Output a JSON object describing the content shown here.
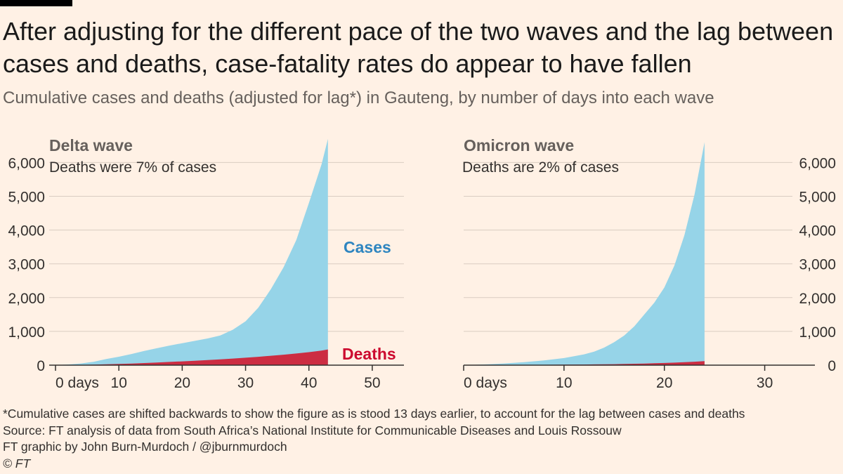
{
  "header": {
    "title": "After adjusting for the different pace of the two waves and the lag between cases and deaths, case-fatality rates do appear to have fallen",
    "subtitle": "Cumulative cases and deaths (adjusted for lag*) in Gauteng, by number of days into each wave"
  },
  "footer": {
    "note": "*Cumulative cases are shifted backwards to show the figure as is stood 13 days earlier, to account for the lag between cases and deaths",
    "source": "Source: FT analysis of data from South Africa’s National Institute for Communicable Diseases and Louis Rossouw",
    "credit": "FT graphic by John Burn-Murdoch / @jburnmurdoch",
    "copyright": "© FT"
  },
  "colors": {
    "background": "#FFF1E5",
    "cases": "#96D4E8",
    "deaths": "#CC2D42",
    "cases_label": "#2E85C0",
    "deaths_label": "#CC0A2F",
    "gridline": "#D9CCC1"
  },
  "chart_data": [
    {
      "type": "area",
      "title": "Delta wave",
      "annotation": "Deaths were 7% of cases",
      "xlim": [
        -1,
        55
      ],
      "ylim": [
        0,
        6800
      ],
      "x_ticks": [
        0,
        10,
        20,
        30,
        40,
        50
      ],
      "x_tick_labels": [
        "0 days",
        "10",
        "20",
        "30",
        "40",
        "50"
      ],
      "y_ticks": [
        0,
        1000,
        2000,
        3000,
        4000,
        5000,
        6000
      ],
      "y_tick_labels": [
        "0",
        "1,000",
        "2,000",
        "3,000",
        "4,000",
        "5,000",
        "6,000"
      ],
      "y_axis_side": "left",
      "series_labels": {
        "cases": "Cases",
        "deaths": "Deaths"
      },
      "x": [
        0,
        2,
        4,
        6,
        8,
        10,
        12,
        14,
        16,
        18,
        20,
        22,
        24,
        26,
        28,
        30,
        32,
        34,
        36,
        38,
        40,
        42,
        43
      ],
      "series": [
        {
          "name": "Cases",
          "values": [
            0,
            20,
            50,
            100,
            180,
            250,
            330,
            420,
            500,
            580,
            650,
            720,
            790,
            880,
            1050,
            1300,
            1700,
            2250,
            2900,
            3700,
            4800,
            5950,
            6700
          ]
        },
        {
          "name": "Deaths",
          "values": [
            0,
            3,
            8,
            15,
            25,
            35,
            48,
            62,
            78,
            95,
            112,
            130,
            150,
            172,
            195,
            220,
            248,
            278,
            310,
            345,
            385,
            430,
            465
          ]
        }
      ]
    },
    {
      "type": "area",
      "title": "Omicron wave",
      "annotation": "Deaths are 2% of cases",
      "xlim": [
        0,
        35
      ],
      "ylim": [
        0,
        6800
      ],
      "x_ticks": [
        0,
        10,
        20,
        30
      ],
      "x_tick_labels": [
        "0 days",
        "10",
        "20",
        "30"
      ],
      "y_ticks": [
        0,
        1000,
        2000,
        3000,
        4000,
        5000,
        6000
      ],
      "y_tick_labels": [
        "0",
        "1,000",
        "2,000",
        "3,000",
        "4,000",
        "5,000",
        "6,000"
      ],
      "y_axis_side": "right",
      "x": [
        0,
        2,
        4,
        6,
        8,
        10,
        12,
        13,
        14,
        15,
        16,
        17,
        18,
        19,
        20,
        21,
        22,
        23,
        24
      ],
      "series": [
        {
          "name": "Cases",
          "values": [
            0,
            20,
            50,
            90,
            140,
            210,
            320,
            400,
            520,
            680,
            880,
            1150,
            1500,
            1850,
            2300,
            2950,
            3850,
            5050,
            6600
          ]
        },
        {
          "name": "Deaths",
          "values": [
            0,
            2,
            4,
            7,
            10,
            14,
            19,
            22,
            26,
            30,
            35,
            41,
            48,
            56,
            65,
            75,
            88,
            102,
            118
          ]
        }
      ]
    }
  ]
}
